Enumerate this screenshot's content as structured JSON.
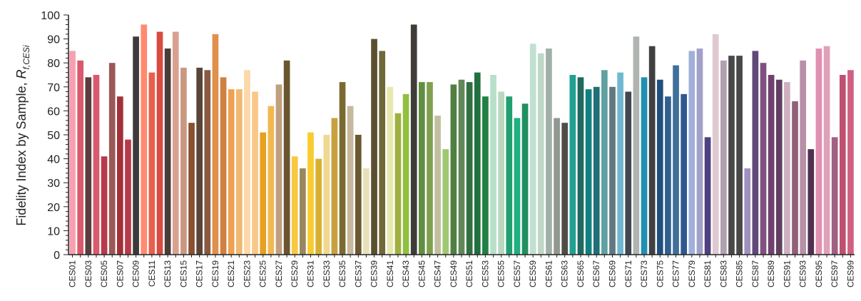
{
  "chart_data": {
    "type": "bar",
    "ylabel": "Fidelity Index by Sample, ",
    "ylabel_symbol": "R",
    "ylabel_subscript": "f,CESi",
    "ylim": [
      0,
      100
    ],
    "yticks": [
      "0",
      "10",
      "20",
      "30",
      "40",
      "50",
      "60",
      "70",
      "80",
      "90",
      "100"
    ],
    "categories": [
      "CES01",
      "CES02",
      "CES03",
      "CES04",
      "CES05",
      "CES06",
      "CES07",
      "CES08",
      "CES09",
      "CES10",
      "CES11",
      "CES12",
      "CES13",
      "CES14",
      "CES15",
      "CES16",
      "CES17",
      "CES18",
      "CES19",
      "CES20",
      "CES21",
      "CES22",
      "CES23",
      "CES24",
      "CES25",
      "CES26",
      "CES27",
      "CES28",
      "CES29",
      "CES30",
      "CES31",
      "CES32",
      "CES33",
      "CES34",
      "CES35",
      "CES36",
      "CES37",
      "CES38",
      "CES39",
      "CES40",
      "CES41",
      "CES42",
      "CES43",
      "CES44",
      "CES45",
      "CES46",
      "CES47",
      "CES48",
      "CES49",
      "CES50",
      "CES51",
      "CES52",
      "CES53",
      "CES54",
      "CES55",
      "CES56",
      "CES57",
      "CES58",
      "CES59",
      "CES60",
      "CES61",
      "CES62",
      "CES63",
      "CES64",
      "CES65",
      "CES66",
      "CES67",
      "CES68",
      "CES69",
      "CES70",
      "CES71",
      "CES72",
      "CES73",
      "CES74",
      "CES75",
      "CES76",
      "CES77",
      "CES78",
      "CES79",
      "CES80",
      "CES81",
      "CES82",
      "CES83",
      "CES84",
      "CES85",
      "CES86",
      "CES87",
      "CES88",
      "CES89",
      "CES90",
      "CES91",
      "CES92",
      "CES93",
      "CES94",
      "CES95",
      "CES96",
      "CES97",
      "CES98",
      "CES99"
    ],
    "labeled_categories": [
      "CES01",
      "CES03",
      "CES05",
      "CES07",
      "CES09",
      "CES11",
      "CES13",
      "CES15",
      "CES17",
      "CES19",
      "CES21",
      "CES23",
      "CES25",
      "CES27",
      "CES29",
      "CES31",
      "CES33",
      "CES35",
      "CES37",
      "CES39",
      "CES41",
      "CES43",
      "CES45",
      "CES47",
      "CES49",
      "CES51",
      "CES53",
      "CES55",
      "CES57",
      "CES59",
      "CES61",
      "CES63",
      "CES65",
      "CES67",
      "CES69",
      "CES71",
      "CES73",
      "CES75",
      "CES77",
      "CES79",
      "CES81",
      "CES83",
      "CES85",
      "CES87",
      "CES89",
      "CES91",
      "CES93",
      "CES95",
      "CES97",
      "CES99"
    ],
    "values": [
      85,
      81,
      74,
      75,
      41,
      80,
      66,
      48,
      91,
      96,
      76,
      93,
      86,
      93,
      78,
      55,
      78,
      77,
      92,
      74,
      69,
      69,
      77,
      68,
      51,
      62,
      71,
      81,
      41,
      36,
      51,
      40,
      50,
      57,
      72,
      62,
      50,
      36,
      90,
      85,
      70,
      59,
      67,
      96,
      72,
      72,
      58,
      44,
      71,
      73,
      72,
      76,
      66,
      75,
      68,
      66,
      57,
      63,
      88,
      84,
      86,
      57,
      55,
      75,
      74,
      69,
      70,
      77,
      70,
      76,
      68,
      91,
      74,
      87,
      73,
      66,
      79,
      67,
      85,
      86,
      49,
      92,
      81,
      83,
      83,
      36,
      85,
      80,
      75,
      73,
      72,
      64,
      81,
      44,
      86,
      87,
      49,
      75,
      77
    ],
    "colors": [
      "#f6a0b0",
      "#d85a6c",
      "#5a3d3d",
      "#d85a6c",
      "#b83a4a",
      "#9a5858",
      "#a33038",
      "#b83a4a",
      "#3e3a3a",
      "#ff8a70",
      "#e8604c",
      "#d94a40",
      "#4a3c38",
      "#d9a090",
      "#c99880",
      "#8a5030",
      "#5a4538",
      "#8a5a40",
      "#e0904a",
      "#d08040",
      "#f0a050",
      "#f0b870",
      "#fcd8a8",
      "#f8c888",
      "#e8a020",
      "#f2b850",
      "#c0a080",
      "#6a5530",
      "#f8c840",
      "#988860",
      "#f8cc30",
      "#d8b030",
      "#f0d890",
      "#c8a040",
      "#7a6a30",
      "#c8b8a0",
      "#6a5830",
      "#e8e0b8",
      "#5a5030",
      "#706838",
      "#e8e8b0",
      "#a0b040",
      "#90c040",
      "#403c38",
      "#609040",
      "#80a050",
      "#c0c0a0",
      "#a0c870",
      "#508040",
      "#608858",
      "#307040",
      "#207040",
      "#208040",
      "#b8e0c8",
      "#b8d8c0",
      "#20a070",
      "#20b080",
      "#209060",
      "#c0e0d0",
      "#c0d8c8",
      "#a0b0a8",
      "#909890",
      "#504c48",
      "#20a090",
      "#206860",
      "#108080",
      "#207078",
      "#60a0a0",
      "#607880",
      "#70b8d0",
      "#404850",
      "#b0b4b0",
      "#2090b0",
      "#404040",
      "#205080",
      "#306090",
      "#40709a",
      "#305890",
      "#a0b0d8",
      "#a0a0c8",
      "#504080",
      "#e0c8d0",
      "#b0a0b0",
      "#484848",
      "#484848",
      "#a090c0",
      "#604878",
      "#805080",
      "#704070",
      "#604060",
      "#d0b0c0",
      "#906078",
      "#b890a8",
      "#503050",
      "#e090b0",
      "#e0a0b8",
      "#a06080",
      "#c05070",
      "#d06080"
    ]
  }
}
